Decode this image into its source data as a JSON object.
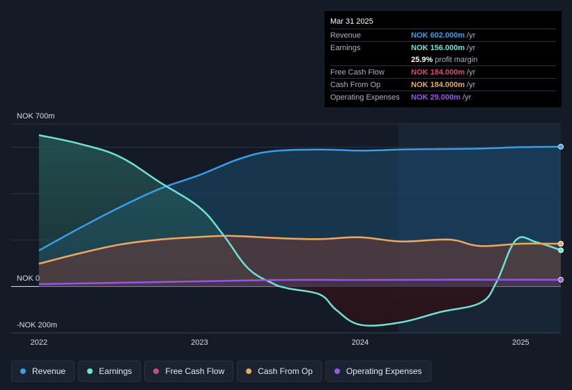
{
  "chart_data": {
    "type": "area",
    "ylim": [
      -200,
      700
    ],
    "y_tick_labels": [
      "NOK 700m",
      "NOK 0",
      "-NOK 200m"
    ],
    "x_tick_labels": [
      "2022",
      "2023",
      "2024",
      "2025"
    ],
    "x_range": [
      2021.97,
      2025.25
    ],
    "series": [
      {
        "name": "Revenue",
        "color": "#3a9ee6",
        "points": [
          [
            2022.0,
            155
          ],
          [
            2022.25,
            250
          ],
          [
            2022.5,
            340
          ],
          [
            2022.75,
            420
          ],
          [
            2023.0,
            480
          ],
          [
            2023.25,
            550
          ],
          [
            2023.45,
            582
          ],
          [
            2023.75,
            590
          ],
          [
            2024.0,
            585
          ],
          [
            2024.25,
            590
          ],
          [
            2024.5,
            592
          ],
          [
            2024.75,
            594
          ],
          [
            2025.0,
            600
          ],
          [
            2025.25,
            602
          ]
        ]
      },
      {
        "name": "Earnings",
        "color": "#6ee4d6",
        "points": [
          [
            2022.0,
            652
          ],
          [
            2022.25,
            615
          ],
          [
            2022.5,
            560
          ],
          [
            2022.75,
            450
          ],
          [
            2023.0,
            340
          ],
          [
            2023.15,
            220
          ],
          [
            2023.3,
            80
          ],
          [
            2023.45,
            15
          ],
          [
            2023.55,
            -8
          ],
          [
            2023.75,
            -35
          ],
          [
            2023.85,
            -100
          ],
          [
            2024.0,
            -165
          ],
          [
            2024.25,
            -155
          ],
          [
            2024.5,
            -110
          ],
          [
            2024.75,
            -70
          ],
          [
            2024.85,
            20
          ],
          [
            2024.97,
            200
          ],
          [
            2025.1,
            190
          ],
          [
            2025.25,
            156
          ]
        ]
      },
      {
        "name": "Free Cash Flow",
        "color": "#d4497c",
        "points": [
          [
            2022.0,
            98
          ],
          [
            2022.25,
            142
          ],
          [
            2022.5,
            180
          ],
          [
            2022.75,
            202
          ],
          [
            2023.0,
            213
          ],
          [
            2023.2,
            218
          ],
          [
            2023.5,
            208
          ],
          [
            2023.75,
            204
          ],
          [
            2024.0,
            212
          ],
          [
            2024.25,
            194
          ],
          [
            2024.5,
            202
          ],
          [
            2024.6,
            198
          ],
          [
            2024.75,
            174
          ],
          [
            2025.0,
            184
          ],
          [
            2025.25,
            184
          ]
        ]
      },
      {
        "name": "Cash From Op",
        "color": "#e8a95c",
        "points": [
          [
            2022.0,
            98
          ],
          [
            2022.25,
            142
          ],
          [
            2022.5,
            180
          ],
          [
            2022.75,
            202
          ],
          [
            2023.0,
            213
          ],
          [
            2023.2,
            218
          ],
          [
            2023.5,
            208
          ],
          [
            2023.75,
            204
          ],
          [
            2024.0,
            212
          ],
          [
            2024.25,
            194
          ],
          [
            2024.5,
            202
          ],
          [
            2024.6,
            198
          ],
          [
            2024.75,
            174
          ],
          [
            2025.0,
            184
          ],
          [
            2025.25,
            184
          ]
        ]
      },
      {
        "name": "Operating Expenses",
        "color": "#9b55e6",
        "points": [
          [
            2022.0,
            10
          ],
          [
            2022.5,
            16
          ],
          [
            2023.0,
            22
          ],
          [
            2023.5,
            28
          ],
          [
            2024.0,
            28
          ],
          [
            2024.5,
            29
          ],
          [
            2025.0,
            29
          ],
          [
            2025.25,
            29
          ]
        ]
      }
    ]
  },
  "tooltip": {
    "date": "Mar 31 2025",
    "rows": [
      {
        "label": "Revenue",
        "value": "NOK 602.000m",
        "unit": "/yr",
        "color": "#3a9ee6"
      },
      {
        "label": "Earnings",
        "value": "NOK 156.000m",
        "unit": "/yr",
        "color": "#6ee4d6"
      },
      {
        "label": "",
        "value": "25.9%",
        "unit": "profit margin",
        "color": "#ffffff"
      },
      {
        "label": "Free Cash Flow",
        "value": "NOK 184.000m",
        "unit": "/yr",
        "color": "#d4497c"
      },
      {
        "label": "Cash From Op",
        "value": "NOK 184.000m",
        "unit": "/yr",
        "color": "#e8a95c"
      },
      {
        "label": "Operating Expenses",
        "value": "NOK 29.000m",
        "unit": "/yr",
        "color": "#9b55e6"
      }
    ]
  },
  "legend": [
    {
      "label": "Revenue",
      "color": "#3a9ee6"
    },
    {
      "label": "Earnings",
      "color": "#6ee4d6"
    },
    {
      "label": "Free Cash Flow",
      "color": "#d4497c"
    },
    {
      "label": "Cash From Op",
      "color": "#e8a95c"
    },
    {
      "label": "Operating Expenses",
      "color": "#9b55e6"
    }
  ]
}
